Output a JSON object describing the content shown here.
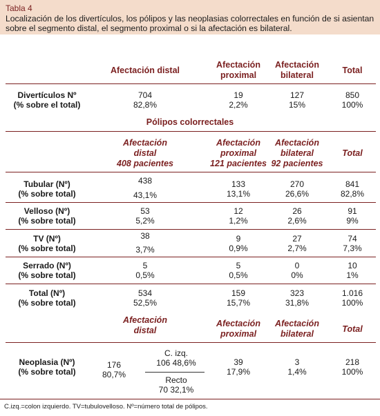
{
  "table_label": "Tabla 4",
  "caption": "Localización de los divertículos, los pólipos y las neoplasias colorrectales en función de si asientan sobre el segmento distal, el segmento proximal o si la afectación es bilateral.",
  "header1": {
    "distal": "Afectación distal",
    "proximal_1": "Afectación",
    "proximal_2": "proximal",
    "bilateral_1": "Afectación",
    "bilateral_2": "bilateral",
    "total": "Total"
  },
  "diverticulos": {
    "label_1": "Divertículos Nº",
    "label_2": "(% sobre el total)",
    "distal_n": "704",
    "distal_p": "82,8%",
    "proximal_n": "19",
    "proximal_p": "2,2%",
    "bilateral_n": "127",
    "bilateral_p": "15%",
    "total_n": "850",
    "total_p": "100%"
  },
  "polipos_title": "Pólipos colorrectales",
  "header2": {
    "distal_1": "Afectación",
    "distal_2": "distal",
    "distal_3": "408 pacientes",
    "proximal_1": "Afectación",
    "proximal_2": "proximal",
    "proximal_3": "121 pacientes",
    "bilateral_1": "Afectación",
    "bilateral_2": "bilateral",
    "bilateral_3": "92 pacientes",
    "total": "Total"
  },
  "rows": [
    {
      "label_1": "Tubular (Nº)",
      "label_2": "(% sobre total)",
      "d_n": "438",
      "d_p": "43,1%",
      "p_n": "133",
      "p_p": "13,1%",
      "b_n": "270",
      "b_p": "26,6%",
      "t_n": "841",
      "t_p": "82,8%"
    },
    {
      "label_1": "Velloso (Nº)",
      "label_2": "(% sobre total)",
      "d_n": "53",
      "d_p": "5,2%",
      "p_n": "12",
      "p_p": "1,2%",
      "b_n": "26",
      "b_p": "2,6%",
      "t_n": "91",
      "t_p": "9%"
    },
    {
      "label_1": "TV (Nº)",
      "label_2": "(% sobre total)",
      "d_n": "38",
      "d_p": "3,7%",
      "p_n": "9",
      "p_p": "0,9%",
      "b_n": "27",
      "b_p": "2,7%",
      "t_n": "74",
      "t_p": "7,3%"
    },
    {
      "label_1": "Serrado (Nº)",
      "label_2": "(% sobre total)",
      "d_n": "5",
      "d_p": "0,5%",
      "p_n": "5",
      "p_p": "0,5%",
      "b_n": "0",
      "b_p": "0%",
      "t_n": "10",
      "t_p": "1%"
    },
    {
      "label_1": "Total (Nº)",
      "label_2": "(% sobre total)",
      "d_n": "534",
      "d_p": "52,5%",
      "p_n": "159",
      "p_p": "15,7%",
      "b_n": "323",
      "b_p": "31,8%",
      "t_n": "1.016",
      "t_p": "100%"
    }
  ],
  "header3": {
    "distal_1": "Afectación",
    "distal_2": "distal",
    "proximal_1": "Afectación",
    "proximal_2": "proximal",
    "bilateral_1": "Afectación",
    "bilateral_2": "bilateral",
    "total": "Total"
  },
  "neoplasia": {
    "label_1": "Neoplasia (Nº)",
    "label_2": "(% sobre total)",
    "d_n": "176",
    "d_p": "80,7%",
    "cizq_label": "C. izq.",
    "cizq_vals": "106  48,6%",
    "recto_label": "Recto",
    "recto_vals": "70  32,1%",
    "p_n": "39",
    "p_p": "17,9%",
    "b_n": "3",
    "b_p": "1,4%",
    "t_n": "218",
    "t_p": "100%"
  },
  "footnote": "C.izq.=colon izquierdo. TV=tubulovelloso. Nº=número total de pólipos."
}
